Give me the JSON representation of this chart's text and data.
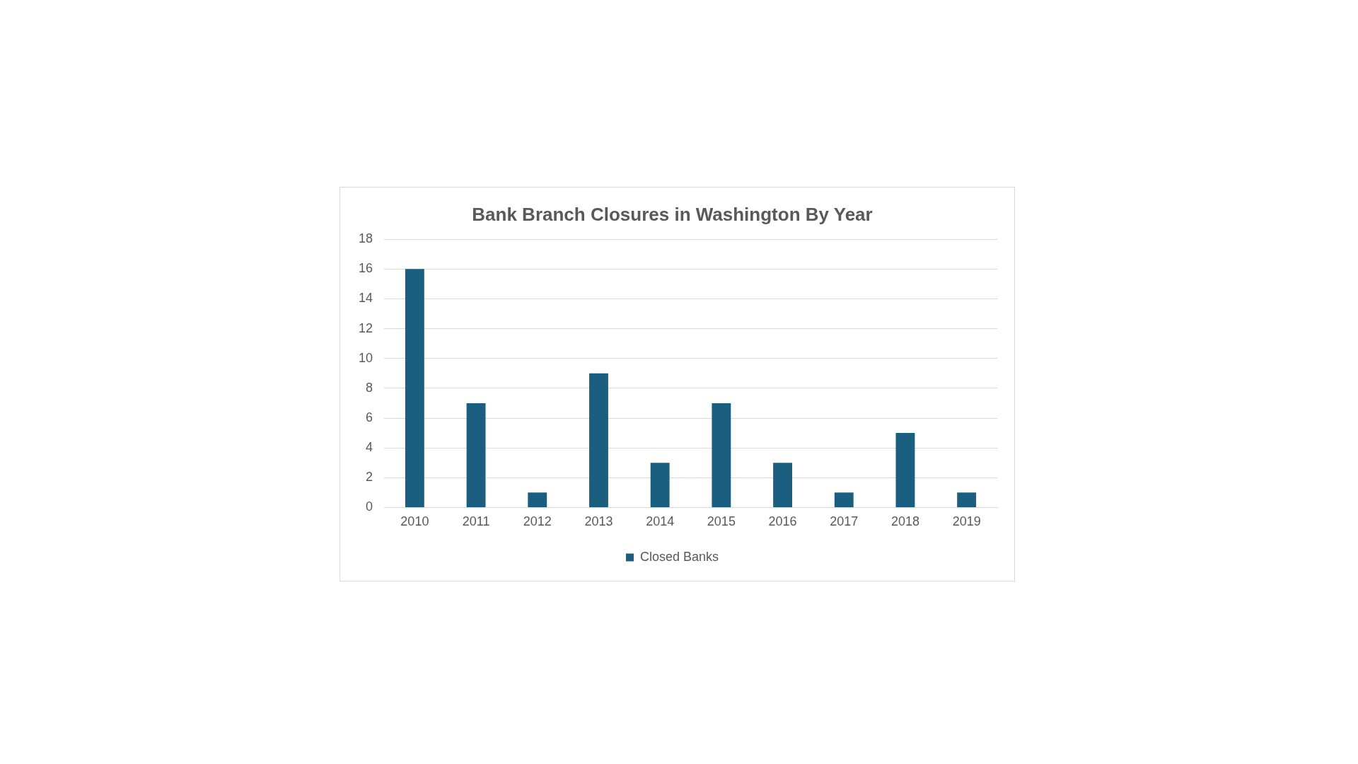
{
  "chart_data": {
    "type": "bar",
    "title": "Bank Branch Closures in Washington By Year",
    "categories": [
      "2010",
      "2011",
      "2012",
      "2013",
      "2014",
      "2015",
      "2016",
      "2017",
      "2018",
      "2019"
    ],
    "series": [
      {
        "name": "Closed Banks",
        "color": "#1a5f80",
        "values": [
          16,
          7,
          1,
          9,
          3,
          7,
          3,
          1,
          5,
          1
        ]
      }
    ],
    "ylim": [
      0,
      18
    ],
    "yticks": [
      0,
      2,
      4,
      6,
      8,
      10,
      12,
      14,
      16,
      18
    ],
    "grid": "y",
    "legend": "bottom"
  }
}
